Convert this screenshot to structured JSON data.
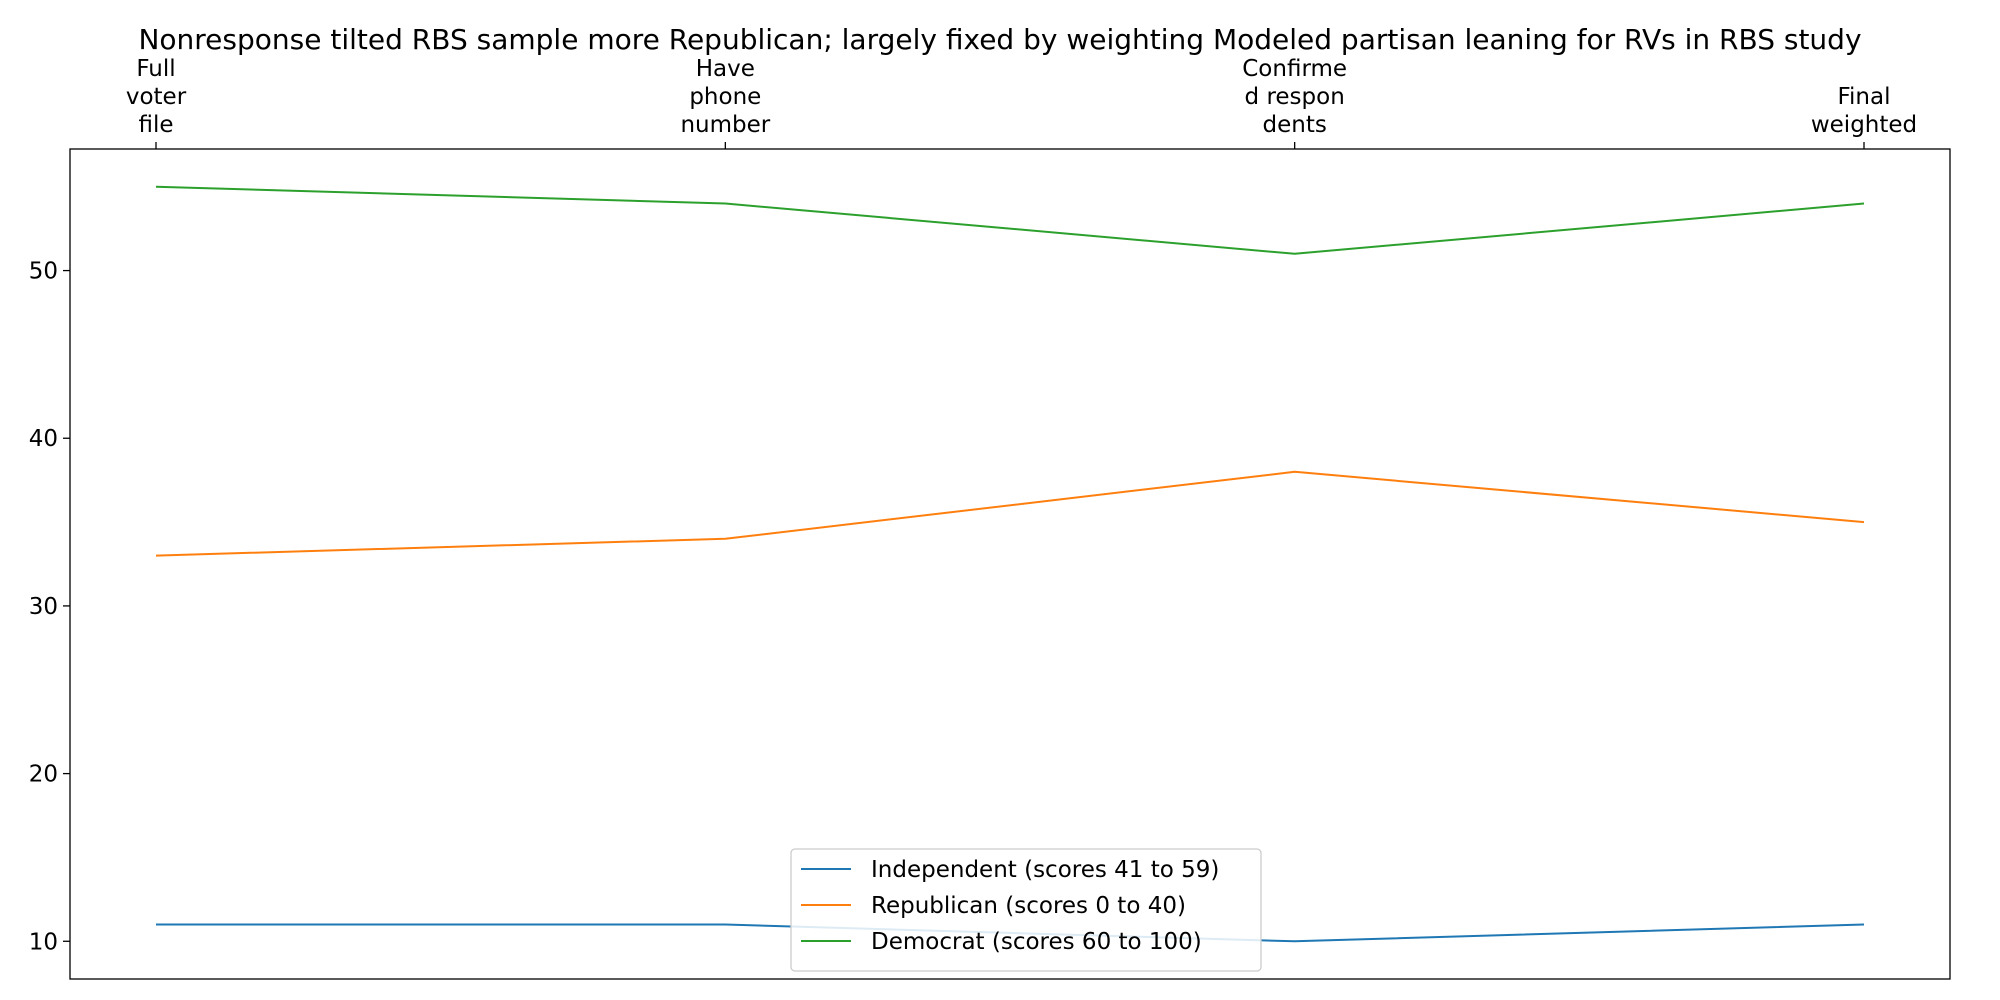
{
  "chart_data": {
    "type": "line",
    "title": "Nonresponse tilted RBS sample more Republican; largely fixed by weighting Modeled partisan leaning for RVs in RBS study",
    "categories": [
      [
        "Full",
        "voter",
        "file"
      ],
      [
        "Have",
        "phone",
        "number"
      ],
      [
        "Confirme",
        "d respon",
        "dents"
      ],
      [
        "Final",
        "weighted"
      ]
    ],
    "xlabel": "",
    "ylabel": "",
    "ylim": [
      7.75,
      57.25
    ],
    "yticks": [
      "10",
      "20",
      "30",
      "40",
      "50"
    ],
    "x_axis_position": "top",
    "grid": false,
    "legend_position": "bottom-center",
    "series": [
      {
        "name": "Independent (scores 41 to 59)",
        "values": [
          11,
          11,
          10,
          11
        ],
        "color": "#1f77b4"
      },
      {
        "name": "Republican (scores 0 to 40)",
        "values": [
          33,
          34,
          38,
          35
        ],
        "color": "#ff7f0e"
      },
      {
        "name": "Democrat (scores 60 to 100)",
        "values": [
          55,
          54,
          51,
          54
        ],
        "color": "#2ca02c"
      }
    ]
  }
}
